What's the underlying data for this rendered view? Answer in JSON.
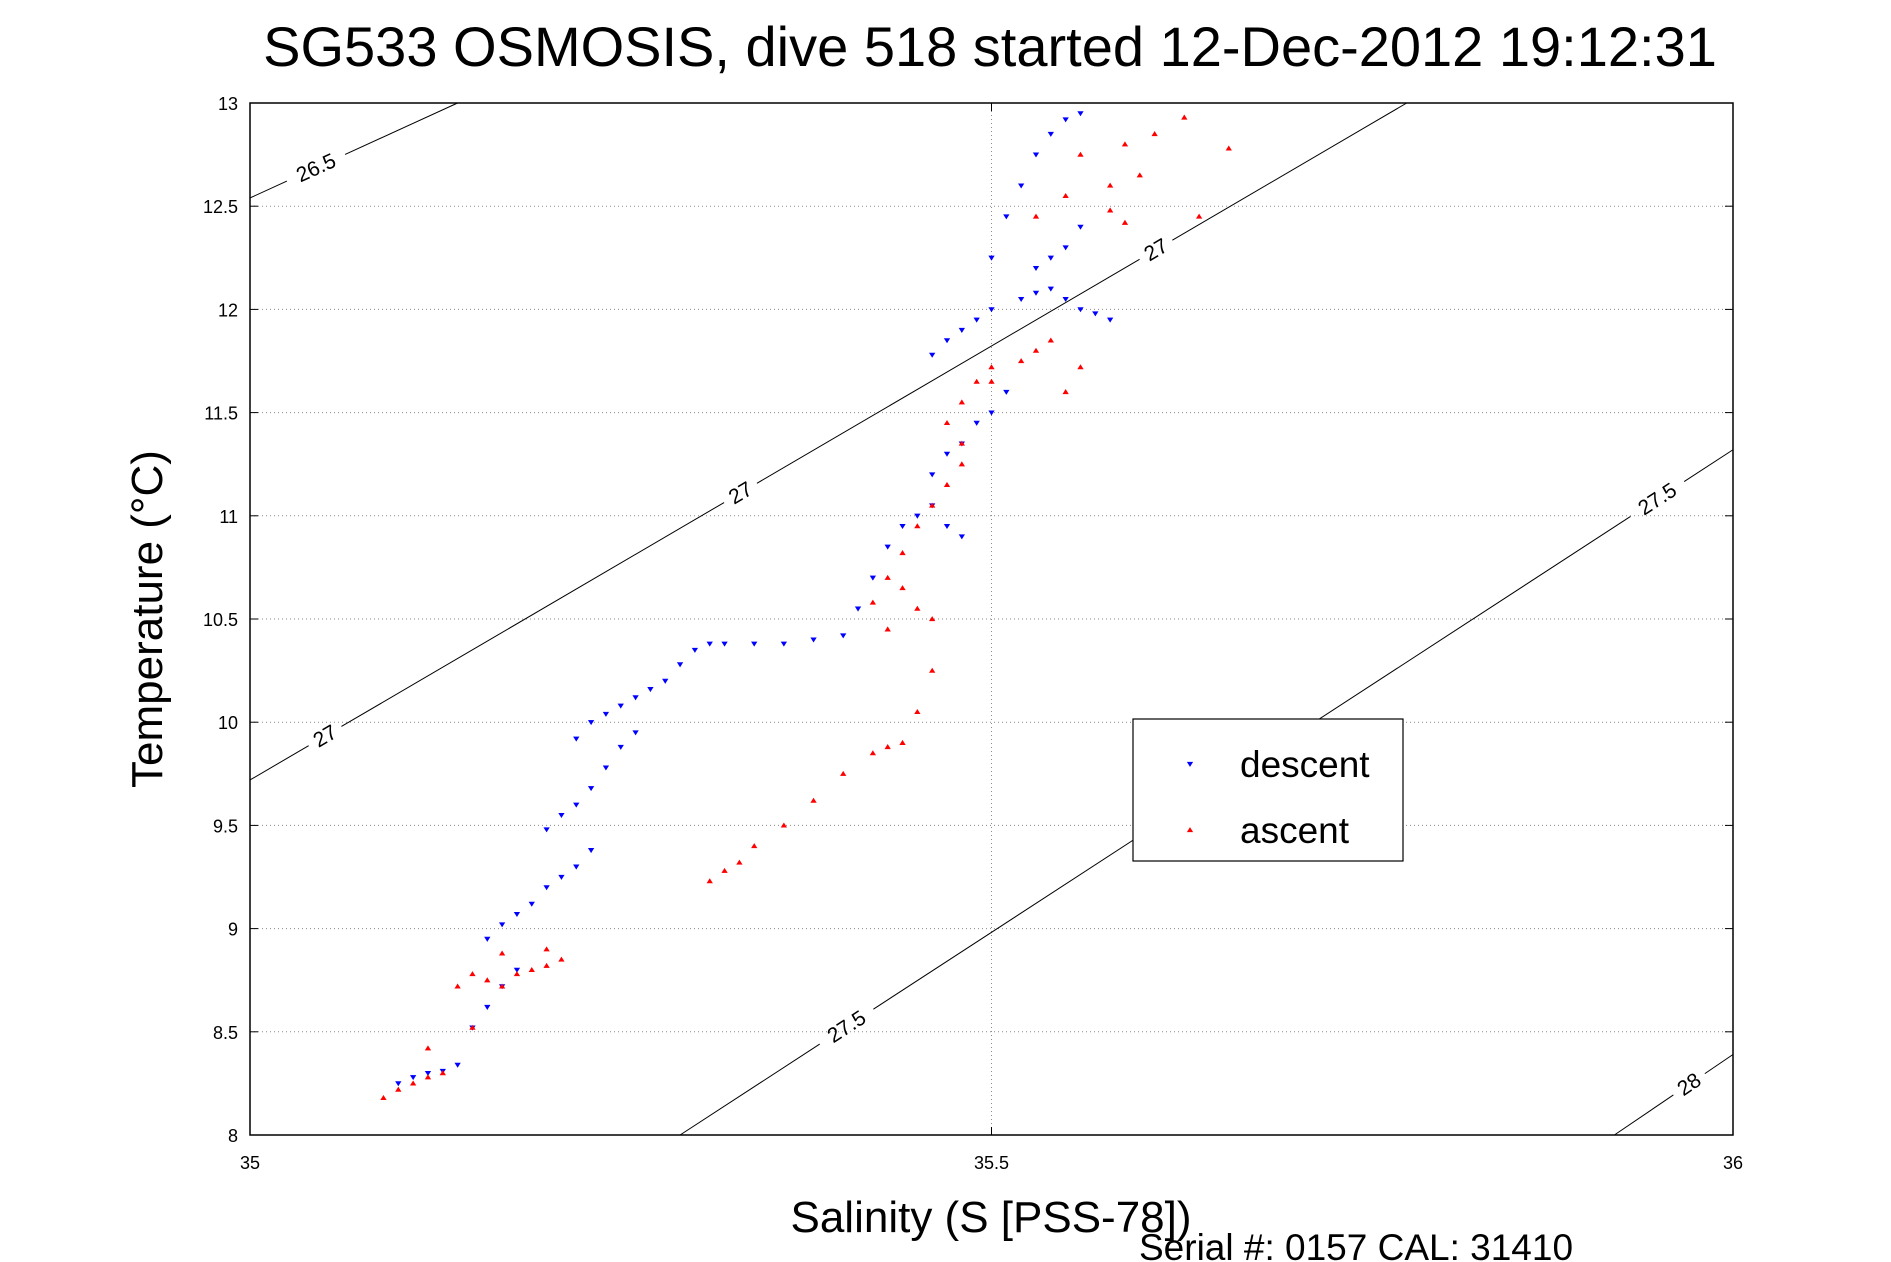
{
  "title": "SG533 OSMOSIS, dive 518 started 12-Dec-2012 19:12:31",
  "footer": "Serial #: 0157  CAL: 31410",
  "colors": {
    "descent": "#0000ff",
    "ascent": "#ff0000",
    "contour": "#000000",
    "grid": "#8a8a8a"
  },
  "chart_data": {
    "type": "scatter",
    "title": "SG533 OSMOSIS, dive 518 started 12-Dec-2012 19:12:31",
    "xlabel": "Salinity (S [PSS-78])",
    "ylabel": "Temperature (°C)",
    "xlim": [
      35,
      36
    ],
    "ylim": [
      8,
      13
    ],
    "xticks": [
      "35",
      "35.5",
      "36"
    ],
    "yticks": [
      "8",
      "8.5",
      "9",
      "9.5",
      "10",
      "10.5",
      "11",
      "11.5",
      "12",
      "12.5",
      "13"
    ],
    "grid": true,
    "legend_placement": "inside, center-right",
    "density_contours": [
      {
        "label": "26.5",
        "points": [
          [
            35.0,
            12.54
          ],
          [
            35.14,
            13.0
          ]
        ],
        "label_positions": [
          [
            35.05,
            12.6
          ]
        ]
      },
      {
        "label": "27",
        "points": [
          [
            35.0,
            9.72
          ],
          [
            35.78,
            13.0
          ]
        ],
        "label_positions": [
          [
            35.05,
            9.94
          ],
          [
            35.33,
            11.12
          ],
          [
            35.61,
            12.3
          ]
        ]
      },
      {
        "label": "27.5",
        "points": [
          [
            35.29,
            8.0
          ],
          [
            36.0,
            11.32
          ]
        ],
        "label_positions": [
          [
            35.4,
            8.55
          ],
          [
            35.95,
            11.07
          ]
        ]
      },
      {
        "label": "28",
        "points": [
          [
            35.92,
            8.0
          ],
          [
            36.0,
            8.39
          ]
        ],
        "label_positions": [
          [
            35.97,
            8.25
          ]
        ]
      }
    ],
    "series": [
      {
        "name": "descent",
        "marker": "triangle-down",
        "x": [
          35.1,
          35.11,
          35.12,
          35.13,
          35.14,
          35.15,
          35.16,
          35.17,
          35.18,
          35.16,
          35.17,
          35.18,
          35.19,
          35.2,
          35.21,
          35.22,
          35.23,
          35.2,
          35.21,
          35.22,
          35.23,
          35.24,
          35.25,
          35.26,
          35.22,
          35.23,
          35.24,
          35.25,
          35.26,
          35.27,
          35.28,
          35.29,
          35.3,
          35.31,
          35.32,
          35.34,
          35.36,
          35.38,
          35.4,
          35.41,
          35.42,
          35.43,
          35.44,
          35.45,
          35.46,
          35.47,
          35.48,
          35.46,
          35.47,
          35.48,
          35.49,
          35.5,
          35.51,
          35.46,
          35.47,
          35.48,
          35.49,
          35.5,
          35.52,
          35.53,
          35.54,
          35.55,
          35.56,
          35.57,
          35.58,
          35.53,
          35.54,
          35.55,
          35.56,
          35.5,
          35.51,
          35.52,
          35.53,
          35.54,
          35.55,
          35.56
        ],
        "y": [
          8.25,
          8.28,
          8.3,
          8.31,
          8.34,
          8.52,
          8.62,
          8.72,
          8.8,
          8.95,
          9.02,
          9.07,
          9.12,
          9.2,
          9.25,
          9.3,
          9.38,
          9.48,
          9.55,
          9.6,
          9.68,
          9.78,
          9.88,
          9.95,
          9.92,
          10.0,
          10.04,
          10.08,
          10.12,
          10.16,
          10.2,
          10.28,
          10.35,
          10.38,
          10.38,
          10.38,
          10.38,
          10.4,
          10.42,
          10.55,
          10.7,
          10.85,
          10.95,
          11.0,
          11.05,
          10.95,
          10.9,
          11.2,
          11.3,
          11.35,
          11.45,
          11.5,
          11.6,
          11.78,
          11.85,
          11.9,
          11.95,
          12.0,
          12.05,
          12.08,
          12.1,
          12.05,
          12.0,
          11.98,
          11.95,
          12.2,
          12.25,
          12.3,
          12.4,
          12.25,
          12.45,
          12.6,
          12.75,
          12.85,
          12.92,
          12.95
        ]
      },
      {
        "name": "ascent",
        "marker": "triangle-up",
        "x": [
          35.09,
          35.1,
          35.11,
          35.12,
          35.13,
          35.12,
          35.15,
          35.14,
          35.15,
          35.16,
          35.17,
          35.18,
          35.19,
          35.2,
          35.21,
          35.17,
          35.2,
          35.31,
          35.32,
          35.33,
          35.34,
          35.36,
          35.38,
          35.4,
          35.42,
          35.43,
          35.44,
          35.45,
          35.46,
          35.43,
          35.42,
          35.43,
          35.44,
          35.45,
          35.46,
          35.44,
          35.45,
          35.46,
          35.47,
          35.48,
          35.48,
          35.47,
          35.48,
          35.49,
          35.5,
          35.5,
          35.52,
          35.53,
          35.54,
          35.55,
          35.56,
          35.53,
          35.55,
          35.58,
          35.6,
          35.56,
          35.59,
          35.61,
          35.63,
          35.58,
          35.59,
          35.64,
          35.66
        ],
        "y": [
          8.18,
          8.22,
          8.25,
          8.28,
          8.3,
          8.42,
          8.52,
          8.72,
          8.78,
          8.75,
          8.72,
          8.78,
          8.8,
          8.82,
          8.85,
          8.88,
          8.9,
          9.23,
          9.28,
          9.32,
          9.4,
          9.5,
          9.62,
          9.75,
          9.85,
          9.88,
          9.9,
          10.05,
          10.25,
          10.45,
          10.58,
          10.7,
          10.65,
          10.55,
          10.5,
          10.82,
          10.95,
          11.05,
          11.15,
          11.25,
          11.35,
          11.45,
          11.55,
          11.65,
          11.72,
          11.65,
          11.75,
          11.8,
          11.85,
          11.6,
          11.72,
          12.45,
          12.55,
          12.6,
          12.65,
          12.75,
          12.8,
          12.85,
          12.93,
          12.48,
          12.42,
          12.45,
          12.78
        ]
      }
    ]
  }
}
